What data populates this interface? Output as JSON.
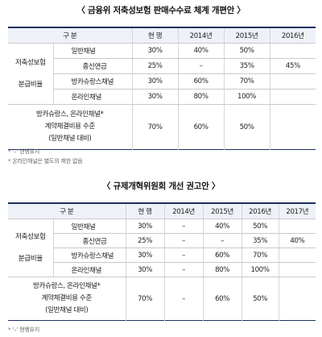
{
  "table1": {
    "title": "〈 금융위 저축성보험 판매수수료 체계 개편안 〉",
    "headers": [
      "구 분",
      "현 행",
      "2014년",
      "2015년",
      "2016년"
    ],
    "group_label_line1": "저축성보험",
    "group_label_line2": "분급비율",
    "rows": [
      {
        "label": "일반채널",
        "cells": [
          "30%",
          "40%",
          "50%",
          ""
        ]
      },
      {
        "label": "종신연금",
        "cells": [
          "25%",
          "–",
          "35%",
          "45%"
        ]
      },
      {
        "label": "방카슈랑스채널",
        "cells": [
          "30%",
          "60%",
          "70%",
          ""
        ]
      },
      {
        "label": "온라인채널",
        "cells": [
          "30%",
          "80%",
          "100%",
          ""
        ]
      }
    ],
    "extra_label": [
      "방카슈랑스, 온라인채널*",
      "계약체결비용 수준",
      "(일반채널 대비)"
    ],
    "extra_cells": [
      "70%",
      "60%",
      "50%",
      ""
    ],
    "notes": [
      "* '–' 현행유지",
      "* 온라인채널은 별도의 제한 없음"
    ]
  },
  "table2": {
    "title": "〈 규제개혁위원회 개선 권고안 〉",
    "headers": [
      "구 분",
      "현 행",
      "2014년",
      "2015년",
      "2016년",
      "2017년"
    ],
    "group_label_line1": "저축성보험",
    "group_label_line2": "분급비율",
    "rows": [
      {
        "label": "일반채널",
        "cells": [
          "30%",
          "–",
          "40%",
          "50%",
          ""
        ]
      },
      {
        "label": "종신연금",
        "cells": [
          "25%",
          "–",
          "–",
          "35%",
          "40%"
        ]
      },
      {
        "label": "방카슈랑스채널",
        "cells": [
          "30%",
          "–",
          "60%",
          "70%",
          ""
        ]
      },
      {
        "label": "온라인채널",
        "cells": [
          "30%",
          "–",
          "80%",
          "100%",
          ""
        ]
      }
    ],
    "extra_label": [
      "방카슈랑스, 온라인채널*",
      "계약체결비용 수준",
      "(일반채널 대비)"
    ],
    "extra_cells": [
      "70%",
      "–",
      "60%",
      "50%",
      ""
    ],
    "notes": [
      "* '–' 현행유지"
    ]
  }
}
